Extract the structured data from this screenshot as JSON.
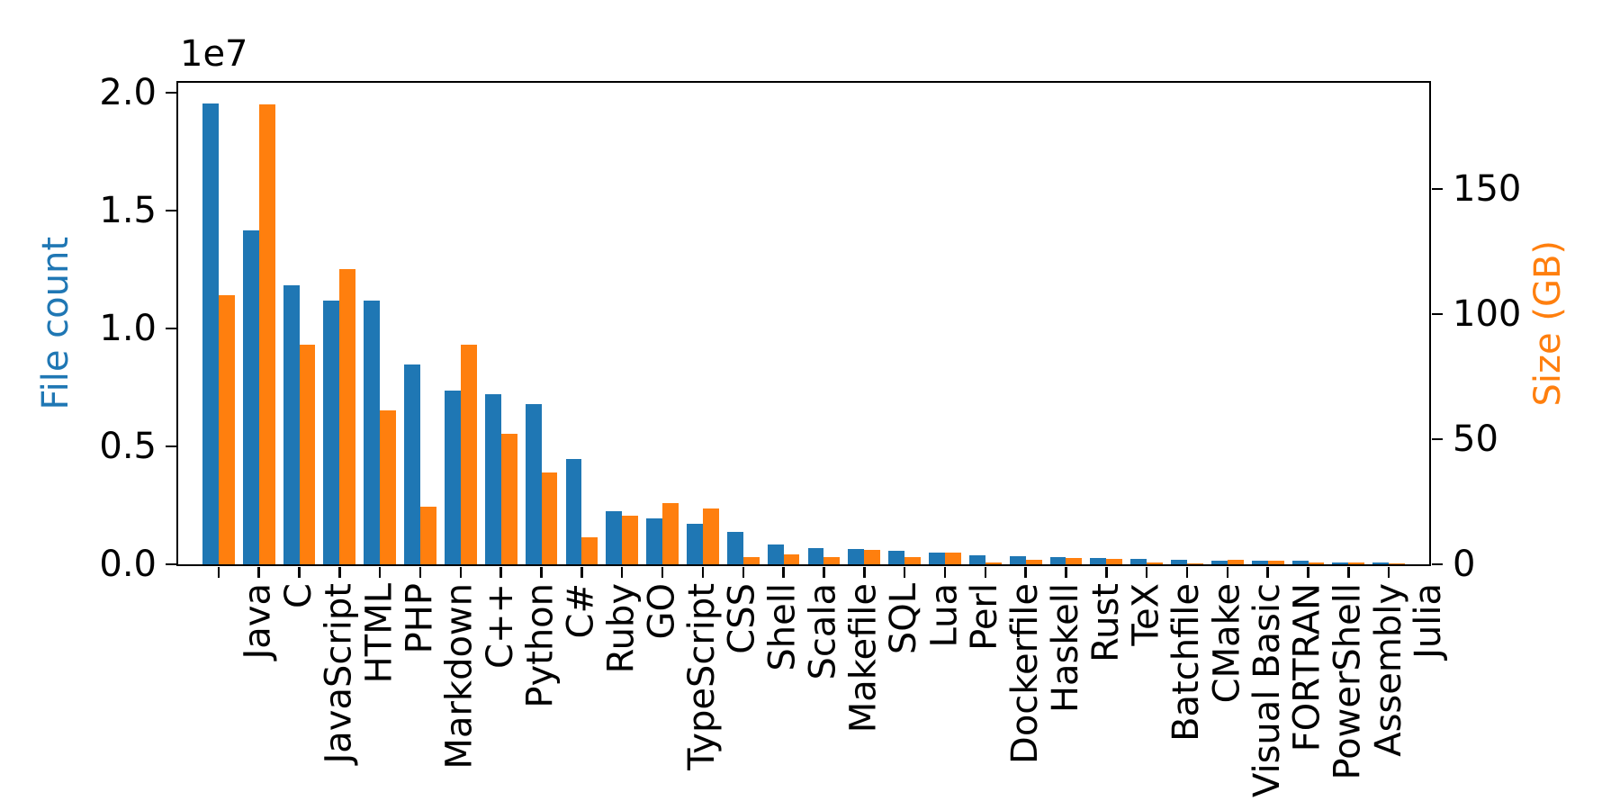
{
  "chart_data": {
    "type": "bar",
    "dual_axis": true,
    "grid": false,
    "legend": "none",
    "title": "",
    "background": "#ffffff",
    "categories": [
      "Java",
      "C",
      "JavaScript",
      "HTML",
      "PHP",
      "Markdown",
      "C++",
      "Python",
      "C#",
      "Ruby",
      "GO",
      "TypeScript",
      "CSS",
      "Shell",
      "Scala",
      "Makefile",
      "SQL",
      "Lua",
      "Perl",
      "Dockerfile",
      "Haskell",
      "Rust",
      "TeX",
      "Batchfile",
      "CMake",
      "Visual Basic",
      "FORTRAN",
      "PowerShell",
      "Assembly",
      "Julia"
    ],
    "series": [
      {
        "name": "File count",
        "axis": "left",
        "color": "#1f77b4",
        "values": [
          19548190,
          14143113,
          11839883,
          11178557,
          11177610,
          8464626,
          7380520,
          7226626,
          6811652,
          4473331,
          2265436,
          1940406,
          1734406,
          1385648,
          835755,
          679430,
          656671,
          578554,
          497949,
          366505,
          340623,
          322431,
          251015,
          236945,
          175282,
          155652,
          142038,
          136846,
          82905,
          58317
        ]
      },
      {
        "name": "Size (GB)",
        "axis": "right",
        "color": "#ff7f0e",
        "values": [
          107.7,
          183.83,
          87.82,
          118.12,
          61.41,
          23.09,
          87.73,
          52.03,
          36.83,
          10.95,
          19.28,
          24.59,
          22.22,
          3.01,
          3.87,
          2.92,
          5.67,
          2.81,
          4.7,
          0.71,
          1.85,
          2.68,
          2.15,
          0.7,
          0.54,
          1.91,
          1.62,
          0.69,
          0.78,
          0.29
        ]
      }
    ],
    "left_axis": {
      "label": "File count",
      "color": "#1f77b4",
      "offset_text": "1e7",
      "tick_values": [
        0,
        5000000,
        10000000,
        15000000,
        20000000
      ],
      "tick_labels": [
        "0.0",
        "0.5",
        "1.0",
        "1.5",
        "2.0"
      ],
      "range": [
        0,
        20420000
      ]
    },
    "right_axis": {
      "label": "Size (GB)",
      "color": "#ff7f0e",
      "tick_values": [
        0,
        50,
        100,
        150
      ],
      "tick_labels": [
        "0",
        "50",
        "100",
        "150"
      ],
      "range": [
        0,
        192.45
      ]
    },
    "x_axis": {
      "tick_label_rotation": 90
    }
  }
}
